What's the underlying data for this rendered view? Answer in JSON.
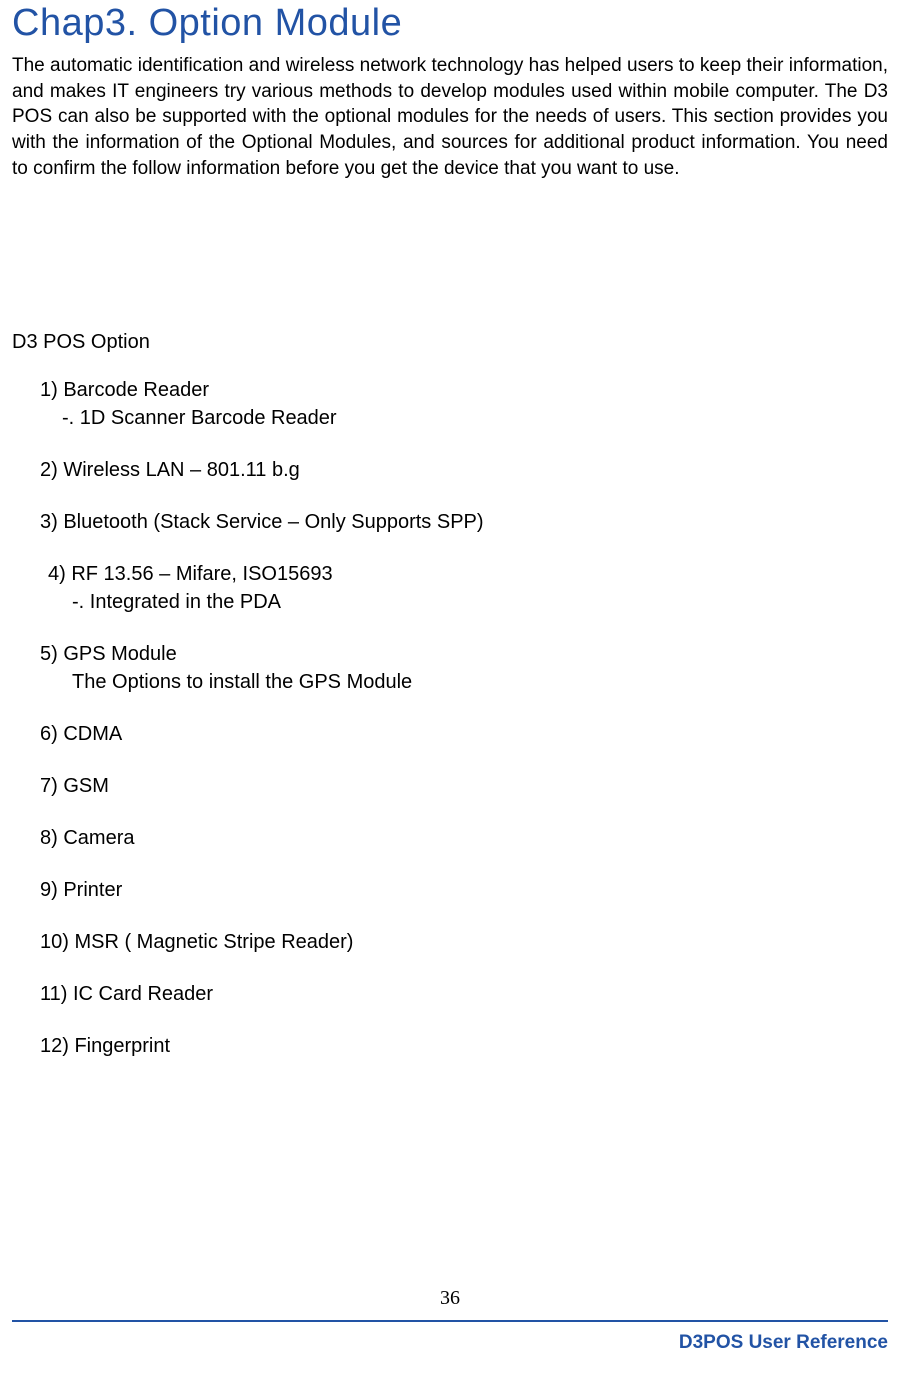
{
  "title": "Chap3. Option Module",
  "intro": "The automatic identification and wireless network technology has helped users to keep their information, and makes IT engineers try various methods to develop modules used within mobile computer. The D3 POS can also be supported with the optional modules for the needs of users. This section provides you with the information of the Optional Modules, and sources for additional product information. You need to confirm the follow information before you get the device that you want to use.",
  "section_title": "D3 POS Option",
  "options": {
    "item1": "1) Barcode Reader",
    "item1_sub": "-. 1D Scanner Barcode Reader",
    "item2": "2) Wireless LAN –  801.11 b.g",
    "item3": "3) Bluetooth (Stack Service –  Only Supports SPP)",
    "item4": "4) RF 13.56   –   Mifare, ISO15693",
    "item4_sub": "-. Integrated in the PDA",
    "item5": "5) GPS Module",
    "item5_sub": "The Options to install the GPS Module",
    "item6": "6) CDMA",
    "item7": "7) GSM",
    "item8": "8) Camera",
    "item9": "9) Printer",
    "item10": "10) MSR ( Magnetic Stripe Reader)",
    "item11": "11) IC Card Reader",
    "item12": "12) Fingerprint"
  },
  "page_number": "36",
  "footer_text": "D3POS User Reference",
  "colors": {
    "title_color": "#2253a5",
    "text_color": "#000000",
    "footer_color": "#2253a5"
  }
}
